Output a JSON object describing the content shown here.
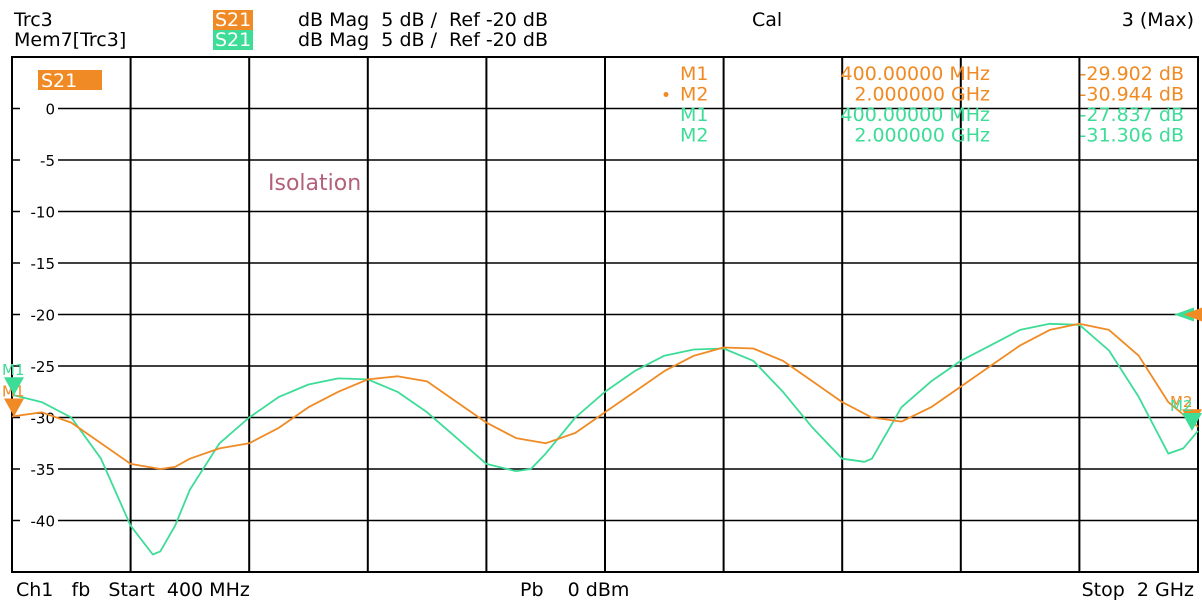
{
  "header": {
    "row1": {
      "trace_name": "Trc3",
      "param": "S21",
      "format": "dB Mag  5 dB /  Ref -20 dB",
      "status": "Cal",
      "channel_info": "3 (Max)"
    },
    "row2": {
      "trace_name": "Mem7[Trc3]",
      "param": "S21",
      "format": "dB Mag  5 dB /  Ref -20 dB"
    }
  },
  "plot": {
    "param_badge": "S21",
    "annotation": "Isolation"
  },
  "footer": {
    "start": "Ch1   fb   Start  400 MHz",
    "power": "Pb    0 dBm",
    "stop": "Stop  2 GHz"
  },
  "colors": {
    "trc3": "#f08a24",
    "mem7": "#3ddc97",
    "annotation": "#b5607a",
    "grid": "#000000"
  },
  "chart_data": {
    "type": "line",
    "xlabel": "",
    "ylabel": "",
    "x_unit": "MHz",
    "xlim": [
      400,
      2000
    ],
    "ylim": [
      -45,
      5
    ],
    "y_ticks": [
      0,
      -5,
      -10,
      -15,
      -20,
      -25,
      -30,
      -35,
      -40
    ],
    "y_tick_labels": [
      "0",
      "-5",
      "-10",
      "-15",
      "-20",
      "-25",
      "-30",
      "-35",
      "-40"
    ],
    "reference_level": -20,
    "grid": true,
    "series": [
      {
        "name": "Trc3",
        "color": "#f08a24",
        "x": [
          400,
          440,
          480,
          520,
          560,
          600,
          620,
          640,
          680,
          720,
          760,
          800,
          840,
          880,
          920,
          960,
          1000,
          1040,
          1080,
          1120,
          1160,
          1200,
          1240,
          1280,
          1320,
          1360,
          1400,
          1440,
          1480,
          1520,
          1560,
          1600,
          1640,
          1680,
          1720,
          1760,
          1800,
          1840,
          1880,
          1920,
          1960,
          2000
        ],
        "y": [
          -29.9,
          -29.5,
          -30.5,
          -32.5,
          -34.5,
          -35.0,
          -34.8,
          -34.0,
          -33.0,
          -32.5,
          -31.0,
          -29.0,
          -27.5,
          -26.3,
          -26.0,
          -26.5,
          -28.5,
          -30.5,
          -32.0,
          -32.5,
          -31.5,
          -29.5,
          -27.5,
          -25.5,
          -24.0,
          -23.2,
          -23.3,
          -24.5,
          -26.5,
          -28.5,
          -30.0,
          -30.4,
          -29.0,
          -27.0,
          -25.0,
          -23.0,
          -21.5,
          -20.9,
          -21.5,
          -24.0,
          -28.5,
          -30.9
        ]
      },
      {
        "name": "Mem7[Trc3]",
        "color": "#3ddc97",
        "x": [
          400,
          440,
          480,
          520,
          560,
          590,
          600,
          620,
          640,
          680,
          720,
          760,
          800,
          840,
          880,
          920,
          960,
          1000,
          1040,
          1080,
          1100,
          1120,
          1160,
          1200,
          1240,
          1280,
          1320,
          1360,
          1400,
          1440,
          1480,
          1520,
          1550,
          1560,
          1580,
          1600,
          1640,
          1680,
          1720,
          1760,
          1800,
          1840,
          1880,
          1920,
          1960,
          1980,
          2000
        ],
        "y": [
          -27.8,
          -28.5,
          -30.0,
          -34.0,
          -40.5,
          -43.3,
          -43.0,
          -40.5,
          -37.0,
          -32.5,
          -30.0,
          -28.0,
          -26.8,
          -26.2,
          -26.3,
          -27.5,
          -29.5,
          -32.0,
          -34.5,
          -35.2,
          -35.0,
          -33.5,
          -30.0,
          -27.5,
          -25.5,
          -24.0,
          -23.4,
          -23.3,
          -24.5,
          -27.5,
          -31.0,
          -34.0,
          -34.3,
          -34.0,
          -31.5,
          -29.0,
          -26.5,
          -24.5,
          -23.0,
          -21.5,
          -20.9,
          -21.0,
          -23.5,
          -28.0,
          -33.5,
          -33.0,
          -31.3
        ]
      }
    ],
    "markers": [
      {
        "trace": "Trc3",
        "label": "M1",
        "freq": "400.00000 MHz",
        "value": "-29.902 dB",
        "x": 400,
        "y": -29.902
      },
      {
        "trace": "Trc3",
        "label": "M2",
        "freq": "2.000000 GHz",
        "value": "-30.944 dB",
        "x": 2000,
        "y": -30.944,
        "active": true
      },
      {
        "trace": "Mem7[Trc3]",
        "label": "M1",
        "freq": "400.00000 MHz",
        "value": "-27.837 dB",
        "x": 400,
        "y": -27.837
      },
      {
        "trace": "Mem7[Trc3]",
        "label": "M2",
        "freq": "2.000000 GHz",
        "value": "-31.306 dB",
        "x": 2000,
        "y": -31.306
      }
    ]
  }
}
